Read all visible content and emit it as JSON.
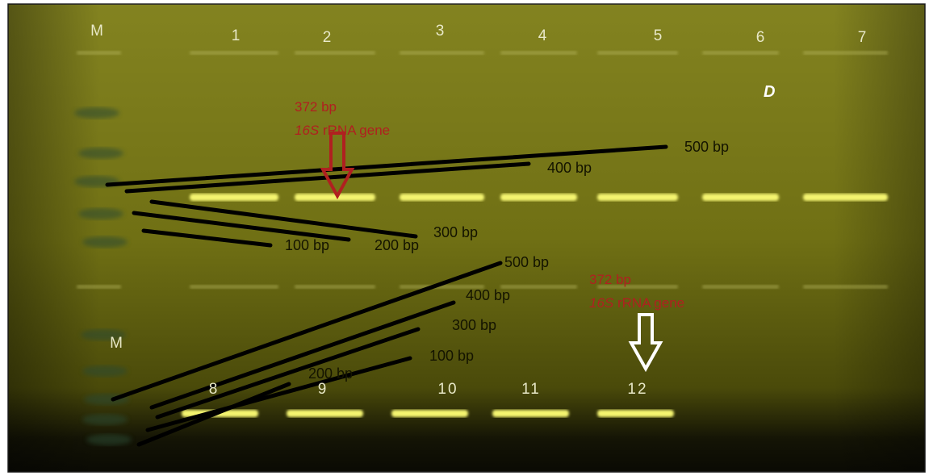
{
  "top_panel": {
    "lanes": [
      "M",
      "1",
      "2",
      "3",
      "4",
      "5",
      "6",
      "7"
    ],
    "panel_label": "D",
    "annotation": {
      "size": "372 bp",
      "gene_italic": "16S",
      "gene_rest": " rRNA gene"
    },
    "ladder": [
      "500 bp",
      "400 bp",
      "300 bp",
      "200 bp",
      "100 bp"
    ]
  },
  "bottom_panel": {
    "lanes": [
      "M",
      "8",
      "9",
      "10",
      "11",
      "12"
    ],
    "annotation": {
      "size": "372 bp",
      "gene_italic": "16S",
      "gene_rest": " rRNA gene"
    },
    "ladder": [
      "500 bp",
      "400 bp",
      "300 bp",
      "100 bp",
      "200 bp"
    ]
  }
}
